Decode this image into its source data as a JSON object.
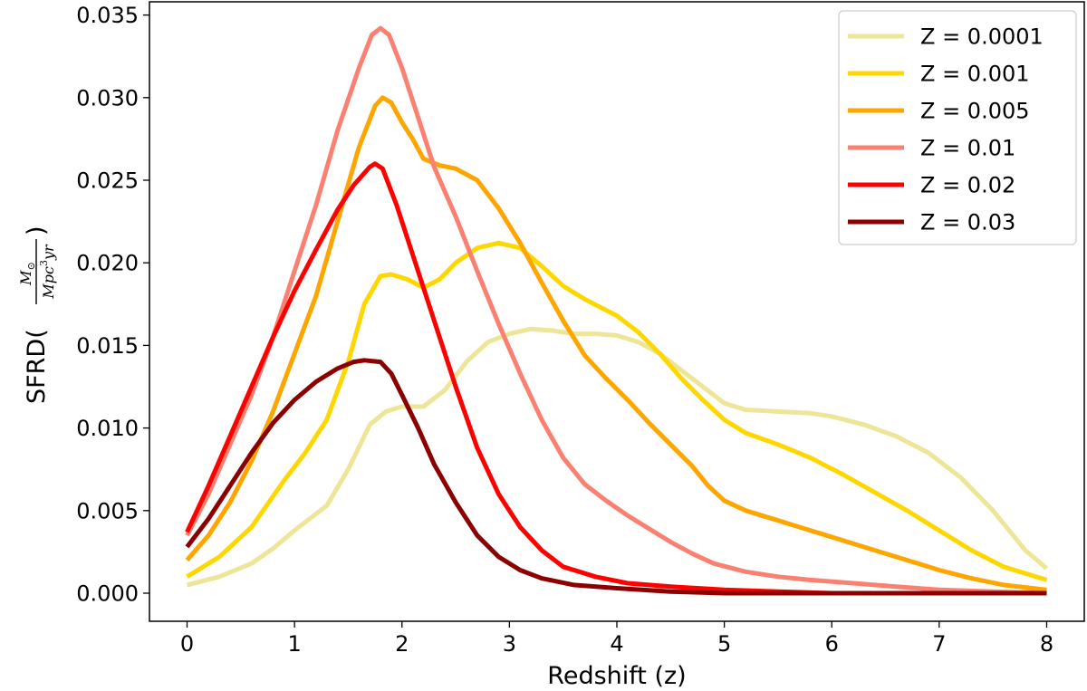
{
  "chart_data": {
    "type": "line",
    "xlabel": "Redshift (z)",
    "ylabel": {
      "prefix": "SFRD(",
      "numerator": "M",
      "numerator_sub": "⊙",
      "denominator": "Mpc",
      "denominator_sup": "3",
      "denominator_suffix": "yr",
      "suffix": ")"
    },
    "xlim": [
      -0.35,
      8.35
    ],
    "ylim": [
      -0.0017,
      0.0358
    ],
    "xticks": [
      0,
      1,
      2,
      3,
      4,
      5,
      6,
      7,
      8
    ],
    "xtick_labels": [
      "0",
      "1",
      "2",
      "3",
      "4",
      "5",
      "6",
      "7",
      "8"
    ],
    "yticks": [
      0.0,
      0.005,
      0.01,
      0.015,
      0.02,
      0.025,
      0.03,
      0.035
    ],
    "ytick_labels": [
      "0.000",
      "0.005",
      "0.010",
      "0.015",
      "0.020",
      "0.025",
      "0.030",
      "0.035"
    ],
    "grid": false,
    "legend_position": "top-right",
    "series": [
      {
        "name": "Z = 0.0001",
        "color": "#ede597",
        "points": [
          [
            0,
            0.0005
          ],
          [
            0.3,
            0.001
          ],
          [
            0.6,
            0.0018
          ],
          [
            0.8,
            0.0027
          ],
          [
            1.0,
            0.0038
          ],
          [
            1.3,
            0.0053
          ],
          [
            1.5,
            0.0075
          ],
          [
            1.7,
            0.0102
          ],
          [
            1.85,
            0.011
          ],
          [
            2.0,
            0.0113
          ],
          [
            2.2,
            0.0113
          ],
          [
            2.4,
            0.0123
          ],
          [
            2.6,
            0.014
          ],
          [
            2.8,
            0.0152
          ],
          [
            3.0,
            0.0157
          ],
          [
            3.2,
            0.016
          ],
          [
            3.4,
            0.0159
          ],
          [
            3.6,
            0.0157
          ],
          [
            3.8,
            0.0157
          ],
          [
            4.0,
            0.0156
          ],
          [
            4.2,
            0.0152
          ],
          [
            4.4,
            0.0145
          ],
          [
            4.6,
            0.0135
          ],
          [
            4.8,
            0.0125
          ],
          [
            5.0,
            0.0115
          ],
          [
            5.2,
            0.0111
          ],
          [
            5.5,
            0.011
          ],
          [
            5.8,
            0.0109
          ],
          [
            6.0,
            0.0107
          ],
          [
            6.3,
            0.0102
          ],
          [
            6.6,
            0.0095
          ],
          [
            6.9,
            0.0085
          ],
          [
            7.2,
            0.007
          ],
          [
            7.5,
            0.005
          ],
          [
            7.8,
            0.0026
          ],
          [
            8.0,
            0.0015
          ]
        ]
      },
      {
        "name": "Z = 0.001",
        "color": "#ffd700",
        "points": [
          [
            0,
            0.001
          ],
          [
            0.3,
            0.0022
          ],
          [
            0.6,
            0.004
          ],
          [
            0.9,
            0.0068
          ],
          [
            1.1,
            0.0085
          ],
          [
            1.3,
            0.0105
          ],
          [
            1.5,
            0.014
          ],
          [
            1.65,
            0.0175
          ],
          [
            1.8,
            0.0192
          ],
          [
            1.9,
            0.0193
          ],
          [
            2.05,
            0.019
          ],
          [
            2.2,
            0.0185
          ],
          [
            2.35,
            0.019
          ],
          [
            2.5,
            0.02
          ],
          [
            2.7,
            0.0209
          ],
          [
            2.9,
            0.0212
          ],
          [
            3.1,
            0.0209
          ],
          [
            3.3,
            0.0198
          ],
          [
            3.5,
            0.0186
          ],
          [
            3.7,
            0.0178
          ],
          [
            4.0,
            0.0168
          ],
          [
            4.2,
            0.0158
          ],
          [
            4.4,
            0.0145
          ],
          [
            4.6,
            0.013
          ],
          [
            4.8,
            0.0117
          ],
          [
            5.0,
            0.0105
          ],
          [
            5.2,
            0.0097
          ],
          [
            5.5,
            0.009
          ],
          [
            5.8,
            0.0082
          ],
          [
            6.1,
            0.0072
          ],
          [
            6.4,
            0.0061
          ],
          [
            6.7,
            0.005
          ],
          [
            7.0,
            0.0038
          ],
          [
            7.3,
            0.0026
          ],
          [
            7.6,
            0.0016
          ],
          [
            8.0,
            0.0008
          ]
        ]
      },
      {
        "name": "Z = 0.005",
        "color": "#ffa500",
        "points": [
          [
            0,
            0.002
          ],
          [
            0.2,
            0.0035
          ],
          [
            0.4,
            0.0055
          ],
          [
            0.6,
            0.008
          ],
          [
            0.8,
            0.011
          ],
          [
            1.0,
            0.0145
          ],
          [
            1.2,
            0.018
          ],
          [
            1.4,
            0.0225
          ],
          [
            1.6,
            0.027
          ],
          [
            1.75,
            0.0295
          ],
          [
            1.82,
            0.03
          ],
          [
            1.9,
            0.0297
          ],
          [
            2.0,
            0.0285
          ],
          [
            2.1,
            0.0275
          ],
          [
            2.2,
            0.0263
          ],
          [
            2.35,
            0.0259
          ],
          [
            2.5,
            0.0257
          ],
          [
            2.7,
            0.025
          ],
          [
            2.9,
            0.0233
          ],
          [
            3.1,
            0.0212
          ],
          [
            3.3,
            0.0188
          ],
          [
            3.5,
            0.0165
          ],
          [
            3.7,
            0.0144
          ],
          [
            3.9,
            0.013
          ],
          [
            4.1,
            0.0117
          ],
          [
            4.3,
            0.0103
          ],
          [
            4.5,
            0.009
          ],
          [
            4.7,
            0.0077
          ],
          [
            4.85,
            0.0065
          ],
          [
            5.0,
            0.0056
          ],
          [
            5.2,
            0.005
          ],
          [
            5.5,
            0.0044
          ],
          [
            5.8,
            0.0038
          ],
          [
            6.1,
            0.0032
          ],
          [
            6.4,
            0.0026
          ],
          [
            6.7,
            0.002
          ],
          [
            7.0,
            0.0014
          ],
          [
            7.3,
            0.0009
          ],
          [
            7.6,
            0.0005
          ],
          [
            8.0,
            0.0002
          ]
        ]
      },
      {
        "name": "Z = 0.01",
        "color": "#fa8072",
        "points": [
          [
            0,
            0.0035
          ],
          [
            0.2,
            0.006
          ],
          [
            0.4,
            0.009
          ],
          [
            0.6,
            0.012
          ],
          [
            0.8,
            0.0155
          ],
          [
            1.0,
            0.0195
          ],
          [
            1.2,
            0.0235
          ],
          [
            1.4,
            0.028
          ],
          [
            1.6,
            0.0318
          ],
          [
            1.72,
            0.0338
          ],
          [
            1.8,
            0.0342
          ],
          [
            1.88,
            0.0338
          ],
          [
            2.0,
            0.0318
          ],
          [
            2.15,
            0.0288
          ],
          [
            2.3,
            0.0258
          ],
          [
            2.5,
            0.0228
          ],
          [
            2.7,
            0.0195
          ],
          [
            2.9,
            0.0163
          ],
          [
            3.1,
            0.0133
          ],
          [
            3.3,
            0.0105
          ],
          [
            3.5,
            0.0082
          ],
          [
            3.7,
            0.0066
          ],
          [
            3.9,
            0.0056
          ],
          [
            4.1,
            0.0047
          ],
          [
            4.3,
            0.0039
          ],
          [
            4.5,
            0.0031
          ],
          [
            4.7,
            0.0024
          ],
          [
            4.9,
            0.0018
          ],
          [
            5.2,
            0.0013
          ],
          [
            5.5,
            0.001
          ],
          [
            5.8,
            0.0008
          ],
          [
            6.2,
            0.0006
          ],
          [
            6.6,
            0.0004
          ],
          [
            7.0,
            0.0002
          ],
          [
            7.5,
            0.0001
          ],
          [
            8.0,
            0.0
          ]
        ]
      },
      {
        "name": "Z = 0.02",
        "color": "#ff0000",
        "points": [
          [
            0,
            0.0037
          ],
          [
            0.2,
            0.0065
          ],
          [
            0.4,
            0.0095
          ],
          [
            0.6,
            0.0125
          ],
          [
            0.8,
            0.0155
          ],
          [
            1.0,
            0.0183
          ],
          [
            1.2,
            0.0208
          ],
          [
            1.4,
            0.0232
          ],
          [
            1.55,
            0.0247
          ],
          [
            1.7,
            0.0258
          ],
          [
            1.75,
            0.026
          ],
          [
            1.82,
            0.0257
          ],
          [
            1.95,
            0.0235
          ],
          [
            2.1,
            0.0205
          ],
          [
            2.3,
            0.0165
          ],
          [
            2.5,
            0.0125
          ],
          [
            2.7,
            0.0088
          ],
          [
            2.9,
            0.006
          ],
          [
            3.1,
            0.004
          ],
          [
            3.3,
            0.0026
          ],
          [
            3.5,
            0.0016
          ],
          [
            3.8,
            0.001
          ],
          [
            4.1,
            0.0006
          ],
          [
            4.5,
            0.0004
          ],
          [
            5.0,
            0.0002
          ],
          [
            5.5,
            0.0001
          ],
          [
            6.0,
            0.0
          ],
          [
            7.0,
            0.0
          ],
          [
            8.0,
            0.0
          ]
        ]
      },
      {
        "name": "Z = 0.03",
        "color": "#8b0000",
        "points": [
          [
            0,
            0.0028
          ],
          [
            0.2,
            0.0045
          ],
          [
            0.4,
            0.0065
          ],
          [
            0.6,
            0.0085
          ],
          [
            0.8,
            0.0103
          ],
          [
            1.0,
            0.0117
          ],
          [
            1.2,
            0.0128
          ],
          [
            1.4,
            0.0136
          ],
          [
            1.55,
            0.014
          ],
          [
            1.65,
            0.0141
          ],
          [
            1.8,
            0.014
          ],
          [
            1.9,
            0.0133
          ],
          [
            2.0,
            0.012
          ],
          [
            2.15,
            0.01
          ],
          [
            2.3,
            0.0078
          ],
          [
            2.5,
            0.0055
          ],
          [
            2.7,
            0.0035
          ],
          [
            2.9,
            0.0022
          ],
          [
            3.1,
            0.0014
          ],
          [
            3.3,
            0.0009
          ],
          [
            3.6,
            0.0005
          ],
          [
            4.0,
            0.0003
          ],
          [
            4.5,
            0.0001
          ],
          [
            5.0,
            0.0
          ],
          [
            6.0,
            0.0
          ],
          [
            7.0,
            0.0
          ],
          [
            8.0,
            0.0
          ]
        ]
      }
    ]
  }
}
